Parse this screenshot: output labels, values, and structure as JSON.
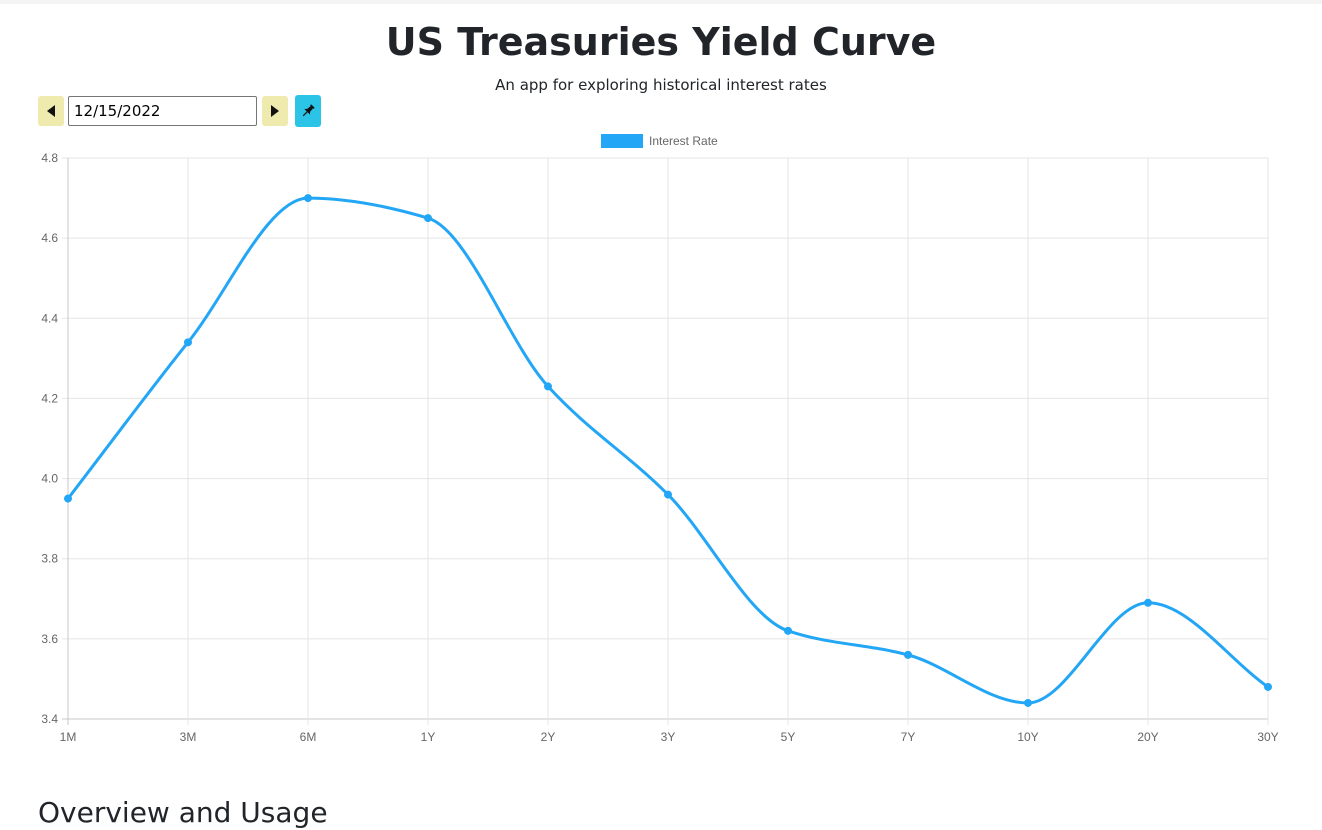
{
  "header": {
    "title": "US Treasuries Yield Curve",
    "subtitle": "An app for exploring historical interest rates"
  },
  "controls": {
    "date_value": "12/15/2022",
    "prev_icon": "caret-left-icon",
    "next_icon": "caret-right-icon",
    "pin_icon": "pin-icon",
    "nav_button_color": "#efeaad",
    "pin_button_color": "#2bc3e6"
  },
  "chart_data": {
    "type": "line",
    "categories": [
      "1M",
      "3M",
      "6M",
      "1Y",
      "2Y",
      "3Y",
      "5Y",
      "7Y",
      "10Y",
      "20Y",
      "30Y"
    ],
    "series": [
      {
        "name": "Interest Rate",
        "values": [
          3.95,
          4.34,
          4.7,
          4.65,
          4.23,
          3.96,
          3.62,
          3.56,
          3.44,
          3.69,
          3.48
        ],
        "color": "#22a6f5"
      }
    ],
    "ylim": [
      3.4,
      4.8
    ],
    "yticks": [
      "4.8",
      "4.6",
      "4.4",
      "4.2",
      "4.0",
      "3.8",
      "3.6",
      "3.4"
    ],
    "grid": true,
    "legend": "top-center",
    "smooth": true
  },
  "sections": {
    "overview_heading": "Overview and Usage"
  }
}
